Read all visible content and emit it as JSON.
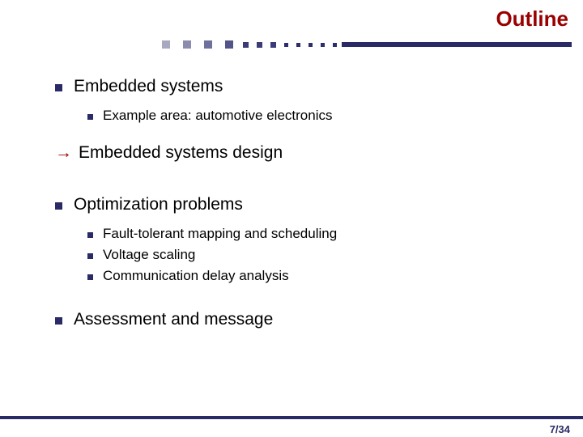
{
  "title": "Outline",
  "title_color": "#9a0000",
  "divider": {
    "big_dot_colors": [
      "#a8a8c0",
      "#8c8cae",
      "#70709c",
      "#54548a"
    ],
    "small_dot_color": "#3b3b78",
    "tiny_dot_color": "#2e2e6e",
    "bar_color": "#2a2a66"
  },
  "bullet_color": "#2a2a66",
  "text_color": "#000000",
  "arrow_color": "#9a0000",
  "arrow_glyph": "→",
  "footer_bar_color": "#2a2a66",
  "page_number": "7/34",
  "page_number_color": "#2a2a66",
  "items": [
    {
      "type": "l1",
      "text": "Embedded systems"
    },
    {
      "type": "l2",
      "text": "Example area: automotive electronics"
    },
    {
      "type": "gap-sm"
    },
    {
      "type": "l1-arrow",
      "text": "Embedded systems design"
    },
    {
      "type": "gap-md"
    },
    {
      "type": "l1",
      "text": "Optimization problems"
    },
    {
      "type": "l2",
      "text": "Fault-tolerant mapping and scheduling"
    },
    {
      "type": "l2",
      "text": "Voltage scaling"
    },
    {
      "type": "l2",
      "text": "Communication delay analysis"
    },
    {
      "type": "gap-md"
    },
    {
      "type": "l1",
      "text": "Assessment and message"
    }
  ]
}
